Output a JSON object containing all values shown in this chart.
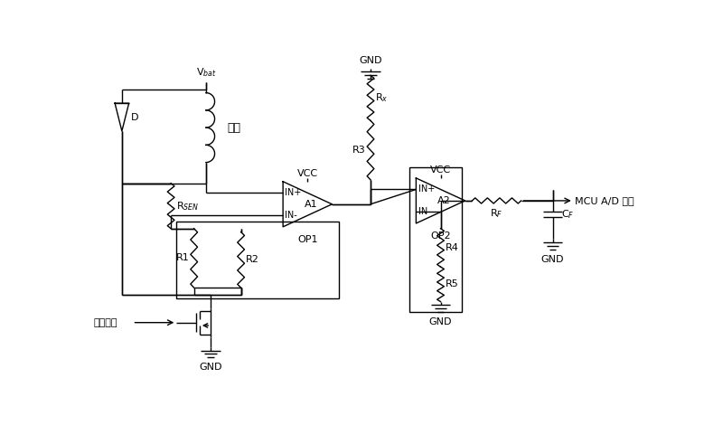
{
  "bg_color": "#ffffff",
  "line_color": "#000000",
  "lw": 1.0,
  "fs": 8,
  "labels": {
    "vbat": "V$_{bat}$",
    "D": "D",
    "load": "负载",
    "rsen": "R$_{SEN}$",
    "r1": "R1",
    "r2": "R2",
    "r3": "R3",
    "rx": "R$_x$",
    "vcc1": "VCC",
    "vcc2": "VCC",
    "in_plus": "IN+",
    "in_minus": "IN-",
    "a1": "A1",
    "op1": "OP1",
    "a2": "A2",
    "op2": "OP2",
    "r4": "R4",
    "r5": "R5",
    "rf": "R$_F$",
    "cf": "C$_F$",
    "mcu": "MCU A/D 端口",
    "gnd": "GND",
    "ctrl": "控制信号"
  }
}
